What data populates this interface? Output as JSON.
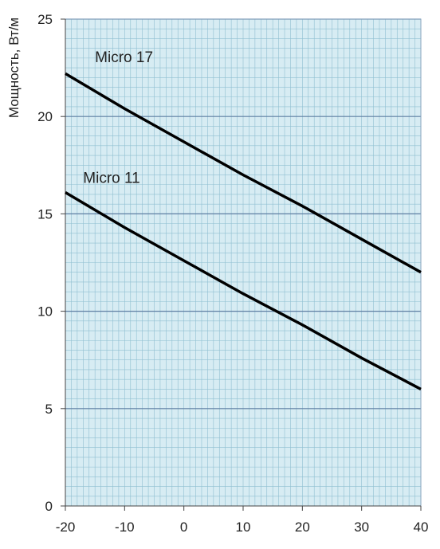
{
  "chart_data": {
    "type": "line",
    "title": "",
    "xlabel": "",
    "ylabel": "Мощность, Вт/м",
    "xlim": [
      -20,
      40
    ],
    "ylim": [
      0,
      25
    ],
    "x_ticks": [
      -20,
      -10,
      0,
      10,
      20,
      30,
      40
    ],
    "x_tick_labels": [
      "-20",
      "-10",
      "0",
      "10",
      "20",
      "30",
      "40"
    ],
    "y_ticks": [
      0,
      5,
      10,
      15,
      20,
      25
    ],
    "y_tick_labels": [
      "0",
      "5",
      "10",
      "15",
      "20",
      "25"
    ],
    "grid": true,
    "minor_grid": true,
    "legend": "inline labels",
    "colors": {
      "line": "#000000",
      "plot_bg": "#d7ecf3",
      "minor_grid": "#8fbfd1",
      "major_grid": "#5f7fa3"
    },
    "series": [
      {
        "name": "Micro 17",
        "x": [
          -20,
          -10,
          0,
          10,
          20,
          30,
          40
        ],
        "y": [
          22.2,
          20.4,
          18.7,
          17.0,
          15.4,
          13.7,
          12.0
        ]
      },
      {
        "name": "Micro 11",
        "x": [
          -20,
          -10,
          0,
          10,
          20,
          30,
          40
        ],
        "y": [
          16.1,
          14.3,
          12.6,
          10.9,
          9.3,
          7.6,
          6.0
        ]
      }
    ]
  }
}
